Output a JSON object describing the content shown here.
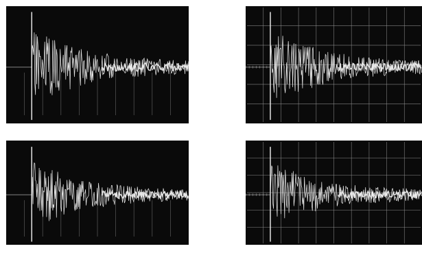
{
  "colors": {
    "page_background": "#ffffff",
    "screen_background": "#0a0a0a",
    "trace": "#f2f2f2",
    "graticule": "#9a9a9a"
  },
  "panels": [
    {
      "id": "top-left",
      "graticule": "partial",
      "impulse": "strong",
      "seed": 11
    },
    {
      "id": "top-right",
      "graticule": "full",
      "impulse": "strong",
      "seed": 23
    },
    {
      "id": "bottom-left",
      "graticule": "partial",
      "impulse": "medium",
      "seed": 37
    },
    {
      "id": "bottom-right",
      "graticule": "full",
      "impulse": "medium",
      "seed": 53
    }
  ]
}
